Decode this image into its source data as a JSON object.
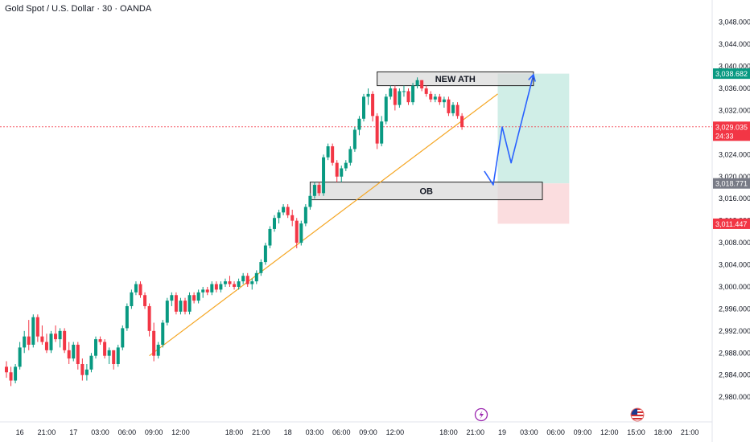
{
  "header": {
    "title": "Gold Spot / U.S. Dollar · 30 · OANDA"
  },
  "colors": {
    "up": "#089981",
    "down": "#f23645",
    "trendline": "#f5a623",
    "arrow": "#2962ff",
    "current_price": "#f23645",
    "target_box": "#c8ebe3",
    "stop_box": "#fbd9dc",
    "zone_fill": "#d9d9d9"
  },
  "chart_data": {
    "type": "candlestick",
    "symbol": "Gold Spot / U.S. Dollar",
    "interval": "30",
    "broker": "OANDA",
    "ylim": [
      2979,
      3050
    ],
    "y_ticks": [
      2980,
      2984,
      2988,
      2992,
      2996,
      3000,
      3004,
      3008,
      3012,
      3016,
      3020,
      3024,
      3028,
      3032,
      3036,
      3040,
      3044,
      3048
    ],
    "y_tick_labels": [
      "2,980.000",
      "2,984.000",
      "2,988.000",
      "2,992.000",
      "2,996.000",
      "3,000.000",
      "3,004.000",
      "3,008.000",
      "3,012.000",
      "3,016.000",
      "3,020.000",
      "3,024.000",
      "3,028.000",
      "3,032.000",
      "3,036.000",
      "3,040.000",
      "3,044.000",
      "3,048.000"
    ],
    "x_ticks": [
      {
        "bar": 3,
        "label": "16"
      },
      {
        "bar": 9,
        "label": "21:00"
      },
      {
        "bar": 15,
        "label": "17"
      },
      {
        "bar": 21,
        "label": "03:00"
      },
      {
        "bar": 27,
        "label": "06:00"
      },
      {
        "bar": 33,
        "label": "09:00"
      },
      {
        "bar": 39,
        "label": "12:00"
      },
      {
        "bar": 51,
        "label": "18:00"
      },
      {
        "bar": 57,
        "label": "21:00"
      },
      {
        "bar": 63,
        "label": "18"
      },
      {
        "bar": 69,
        "label": "03:00"
      },
      {
        "bar": 75,
        "label": "06:00"
      },
      {
        "bar": 81,
        "label": "09:00"
      },
      {
        "bar": 87,
        "label": "12:00"
      },
      {
        "bar": 99,
        "label": "18:00"
      },
      {
        "bar": 105,
        "label": "21:00"
      },
      {
        "bar": 111,
        "label": "19"
      },
      {
        "bar": 117,
        "label": "03:00"
      },
      {
        "bar": 123,
        "label": "06:00"
      },
      {
        "bar": 129,
        "label": "09:00"
      },
      {
        "bar": 135,
        "label": "12:00"
      },
      {
        "bar": 141,
        "label": "15:00"
      },
      {
        "bar": 147,
        "label": "18:00"
      },
      {
        "bar": 153,
        "label": "21:00"
      }
    ],
    "ohlc": [
      [
        2985.5,
        2986.5,
        2983.5,
        2984.5
      ],
      [
        2984.5,
        2985.5,
        2982,
        2983
      ],
      [
        2983,
        2986,
        2982.5,
        2985.5
      ],
      [
        2985.5,
        2990,
        2985,
        2989
      ],
      [
        2989,
        2992,
        2988,
        2991
      ],
      [
        2991,
        2994,
        2988.5,
        2989.5
      ],
      [
        2989.5,
        2995,
        2989,
        2994.5
      ],
      [
        2994.5,
        2995,
        2990,
        2991
      ],
      [
        2991,
        2993,
        2989.5,
        2990
      ],
      [
        2990,
        2991.5,
        2988,
        2988.5
      ],
      [
        2988.5,
        2992,
        2988,
        2991.5
      ],
      [
        2991.5,
        2993,
        2990,
        2990.5
      ],
      [
        2990.5,
        2992.5,
        2989,
        2992
      ],
      [
        2992,
        2992.5,
        2988,
        2988.5
      ],
      [
        2988.5,
        2990,
        2986,
        2987
      ],
      [
        2987,
        2990,
        2986.5,
        2989.5
      ],
      [
        2989.5,
        2990,
        2985,
        2986
      ],
      [
        2986,
        2987,
        2983,
        2984
      ],
      [
        2984,
        2986,
        2983,
        2985
      ],
      [
        2985,
        2988,
        2984.5,
        2987.5
      ],
      [
        2987.5,
        2991,
        2987,
        2990.5
      ],
      [
        2990.5,
        2991,
        2989.5,
        2990
      ],
      [
        2990,
        2990.5,
        2987,
        2987.5
      ],
      [
        2987.5,
        2989,
        2986,
        2988.5
      ],
      [
        2988.5,
        2988.5,
        2985,
        2986
      ],
      [
        2986,
        2989.5,
        2985.5,
        2989
      ],
      [
        2989,
        2993,
        2988.5,
        2992.5
      ],
      [
        2992.5,
        2997,
        2992,
        2996.5
      ],
      [
        2996.5,
        2999.5,
        2996,
        2999
      ],
      [
        2999,
        3001,
        2998.5,
        3000.5
      ],
      [
        3000.5,
        3001,
        2998,
        2998.5
      ],
      [
        2998.5,
        2999,
        2996,
        2996.5
      ],
      [
        2996.5,
        2997,
        2991,
        2992
      ],
      [
        2992,
        2993.5,
        2986.5,
        2987.5
      ],
      [
        2987.5,
        2990,
        2987,
        2989.5
      ],
      [
        2989.5,
        2994,
        2989,
        2993.5
      ],
      [
        2993.5,
        2998,
        2993,
        2997.5
      ],
      [
        2997.5,
        2999,
        2996.5,
        2998.5
      ],
      [
        2998.5,
        2999,
        2995,
        2995.5
      ],
      [
        2995.5,
        2998,
        2995,
        2997.5
      ],
      [
        2997.5,
        2998,
        2995,
        2995.5
      ],
      [
        2995.5,
        2999,
        2995,
        2998.5
      ],
      [
        2998.5,
        2999,
        2997,
        2997.5
      ],
      [
        2997.5,
        2999.5,
        2997,
        2999
      ],
      [
        2999,
        3000,
        2998,
        2999.5
      ],
      [
        2999.5,
        3000,
        2998.5,
        2999
      ],
      [
        2999,
        3001,
        2998.5,
        3000.5
      ],
      [
        3000.5,
        3001,
        2999,
        2999.5
      ],
      [
        2999.5,
        3001,
        2999,
        3000.5
      ],
      [
        3000.5,
        3001.5,
        3000,
        3001
      ],
      [
        3001,
        3002,
        3000,
        3000.5
      ],
      [
        3000.5,
        3001,
        2999.5,
        3000
      ],
      [
        3000,
        3001.5,
        2999.5,
        3001
      ],
      [
        3001,
        3002.5,
        3000.5,
        3002
      ],
      [
        3002,
        3002.5,
        3000,
        3000.5
      ],
      [
        3000.5,
        3001.5,
        2999.5,
        3001
      ],
      [
        3001,
        3003,
        3000.5,
        3002.5
      ],
      [
        3002.5,
        3005,
        3002,
        3004.5
      ],
      [
        3004.5,
        3008,
        3004,
        3007.5
      ],
      [
        3007.5,
        3011,
        3007,
        3010.5
      ],
      [
        3010.5,
        3013,
        3010,
        3012.5
      ],
      [
        3012.5,
        3014,
        3011.5,
        3013.5
      ],
      [
        3013.5,
        3015,
        3013,
        3014.5
      ],
      [
        3014.5,
        3015,
        3012.5,
        3013
      ],
      [
        3013,
        3014,
        3011,
        3012
      ],
      [
        3012,
        3012.5,
        3007,
        3008
      ],
      [
        3008,
        3012,
        3007.5,
        3011.5
      ],
      [
        3011.5,
        3015,
        3011,
        3014.5
      ],
      [
        3014.5,
        3017,
        3014,
        3016.5
      ],
      [
        3016.5,
        3019,
        3016,
        3018.5
      ],
      [
        3018.5,
        3019,
        3016.5,
        3017
      ],
      [
        3017,
        3024,
        3016.5,
        3023.5
      ],
      [
        3023.5,
        3026,
        3023,
        3025.5
      ],
      [
        3025.5,
        3026,
        3022,
        3022.5
      ],
      [
        3022.5,
        3023,
        3019,
        3020
      ],
      [
        3020,
        3022,
        3019,
        3021.5
      ],
      [
        3021.5,
        3023,
        3021,
        3022.5
      ],
      [
        3022.5,
        3025.5,
        3022,
        3025
      ],
      [
        3025,
        3029,
        3024.5,
        3028.5
      ],
      [
        3028.5,
        3031,
        3027.5,
        3030.5
      ],
      [
        3030.5,
        3035,
        3030,
        3034.5
      ],
      [
        3034.5,
        3036,
        3033,
        3035
      ],
      [
        3035,
        3035.5,
        3030,
        3031
      ],
      [
        3031,
        3031.5,
        3025,
        3026
      ],
      [
        3026,
        3031,
        3025.5,
        3030
      ],
      [
        3030,
        3035,
        3029.5,
        3034.5
      ],
      [
        3034.5,
        3036.5,
        3034,
        3036
      ],
      [
        3036,
        3036.5,
        3032,
        3033
      ],
      [
        3033,
        3036,
        3032.5,
        3035.5
      ],
      [
        3035.5,
        3036.5,
        3034.5,
        3035.5
      ],
      [
        3035.5,
        3036,
        3033,
        3033.5
      ],
      [
        3033.5,
        3037,
        3033,
        3036.5
      ],
      [
        3036.5,
        3038,
        3036,
        3037.5
      ],
      [
        3037.5,
        3037.5,
        3035.5,
        3036
      ],
      [
        3036,
        3036.5,
        3034.5,
        3035
      ],
      [
        3035,
        3035.5,
        3033.5,
        3034
      ],
      [
        3034,
        3035,
        3033.5,
        3034.5
      ],
      [
        3034.5,
        3035,
        3033,
        3033.5
      ],
      [
        3033.5,
        3034.5,
        3032.5,
        3034
      ],
      [
        3034,
        3034.5,
        3031,
        3031.5
      ],
      [
        3031.5,
        3033.5,
        3031,
        3033
      ],
      [
        3033,
        3033.5,
        3030.5,
        3031
      ],
      [
        3031,
        3031.5,
        3028.5,
        3029
      ]
    ],
    "annotations": {
      "trendline": {
        "from": {
          "bar": 32,
          "price": 2987.5
        },
        "to": {
          "bar": 110,
          "price": 3035
        }
      },
      "new_ath_zone": {
        "label": "NEW ATH",
        "from_bar": 83,
        "to_bar": 118,
        "top": 3039,
        "bottom": 3036.5
      },
      "ob_zone": {
        "label": "OB",
        "from_bar": 68,
        "to_bar": 120,
        "top": 3019,
        "bottom": 3015.8
      },
      "target_box": {
        "from_bar": 110,
        "to_bar": 126,
        "top": 3038.682,
        "bottom": 3018.771
      },
      "stop_box": {
        "from_bar": 110,
        "to_bar": 126,
        "top": 3018.771,
        "bottom": 3011.447
      },
      "projection_arrow": [
        {
          "bar": 107,
          "price": 3021
        },
        {
          "bar": 109,
          "price": 3018.5
        },
        {
          "bar": 111,
          "price": 3029
        },
        {
          "bar": 113,
          "price": 3022.5
        },
        {
          "bar": 118,
          "price": 3038.5
        }
      ],
      "current_price_line": 3029.035
    },
    "price_labels": {
      "target": {
        "value": 3038.682,
        "text": "3,038.682"
      },
      "current": {
        "value": 3029.035,
        "text": "3,029.035",
        "countdown": "24:33"
      },
      "entry": {
        "value": 3018.771,
        "text": "3,018.771"
      },
      "stop": {
        "value": 3011.447,
        "text": "3,011.447"
      }
    }
  }
}
